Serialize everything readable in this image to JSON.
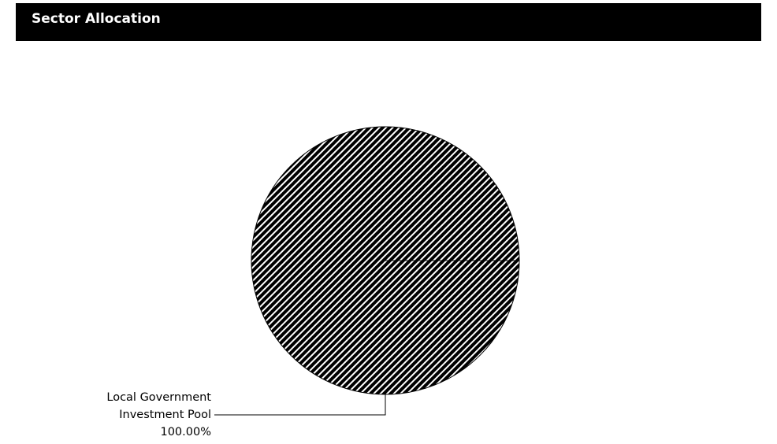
{
  "header": {
    "title": "Sector Allocation"
  },
  "chart_data": {
    "type": "pie",
    "title": "Sector Allocation",
    "slices": [
      {
        "label_lines": [
          "Local Government",
          "Investment Pool"
        ],
        "value": 100.0,
        "value_label": "100.00%"
      }
    ],
    "fill_pattern": "diagonal-hatch",
    "colors": {
      "hatch_dark": "#000000",
      "hatch_light": "#ffffff",
      "outline": "#000000"
    }
  }
}
